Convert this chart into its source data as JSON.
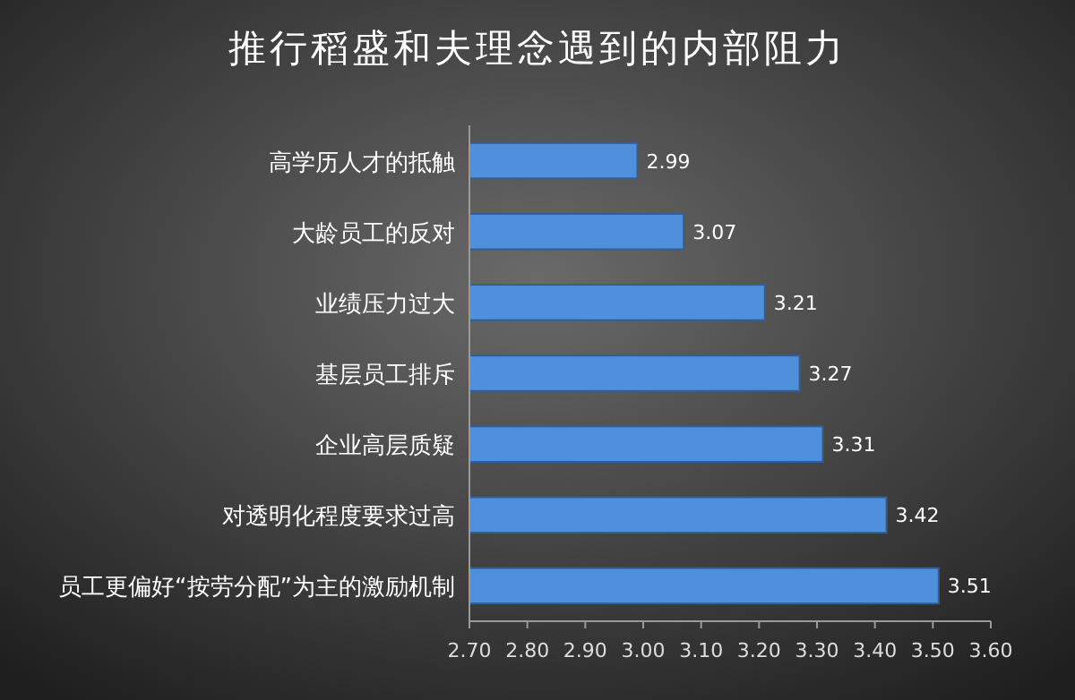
{
  "chart_data": {
    "type": "bar",
    "orientation": "horizontal",
    "title": "推行稻盛和夫理念遇到的内部阻力",
    "categories": [
      "高学历人才的抵触",
      "大龄员工的反对",
      "业绩压力过大",
      "基层员工排斥",
      "企业高层质疑",
      "对透明化程度要求过高",
      "员工更偏好“按劳分配”为主的激励机制"
    ],
    "values": [
      2.99,
      3.07,
      3.21,
      3.27,
      3.31,
      3.42,
      3.51
    ],
    "color": "#4f8fdc",
    "xlim": [
      2.7,
      3.6
    ],
    "xticks": [
      {
        "value": 2.7,
        "label": "2.70"
      },
      {
        "value": 2.8,
        "label": "2.80"
      },
      {
        "value": 2.9,
        "label": "2.90"
      },
      {
        "value": 3.0,
        "label": "3.00"
      },
      {
        "value": 3.1,
        "label": "3.10"
      },
      {
        "value": 3.2,
        "label": "3.20"
      },
      {
        "value": 3.3,
        "label": "3.30"
      },
      {
        "value": 3.4,
        "label": "3.40"
      },
      {
        "value": 3.5,
        "label": "3.50"
      },
      {
        "value": 3.6,
        "label": "3.60"
      }
    ],
    "data_labels": true
  }
}
